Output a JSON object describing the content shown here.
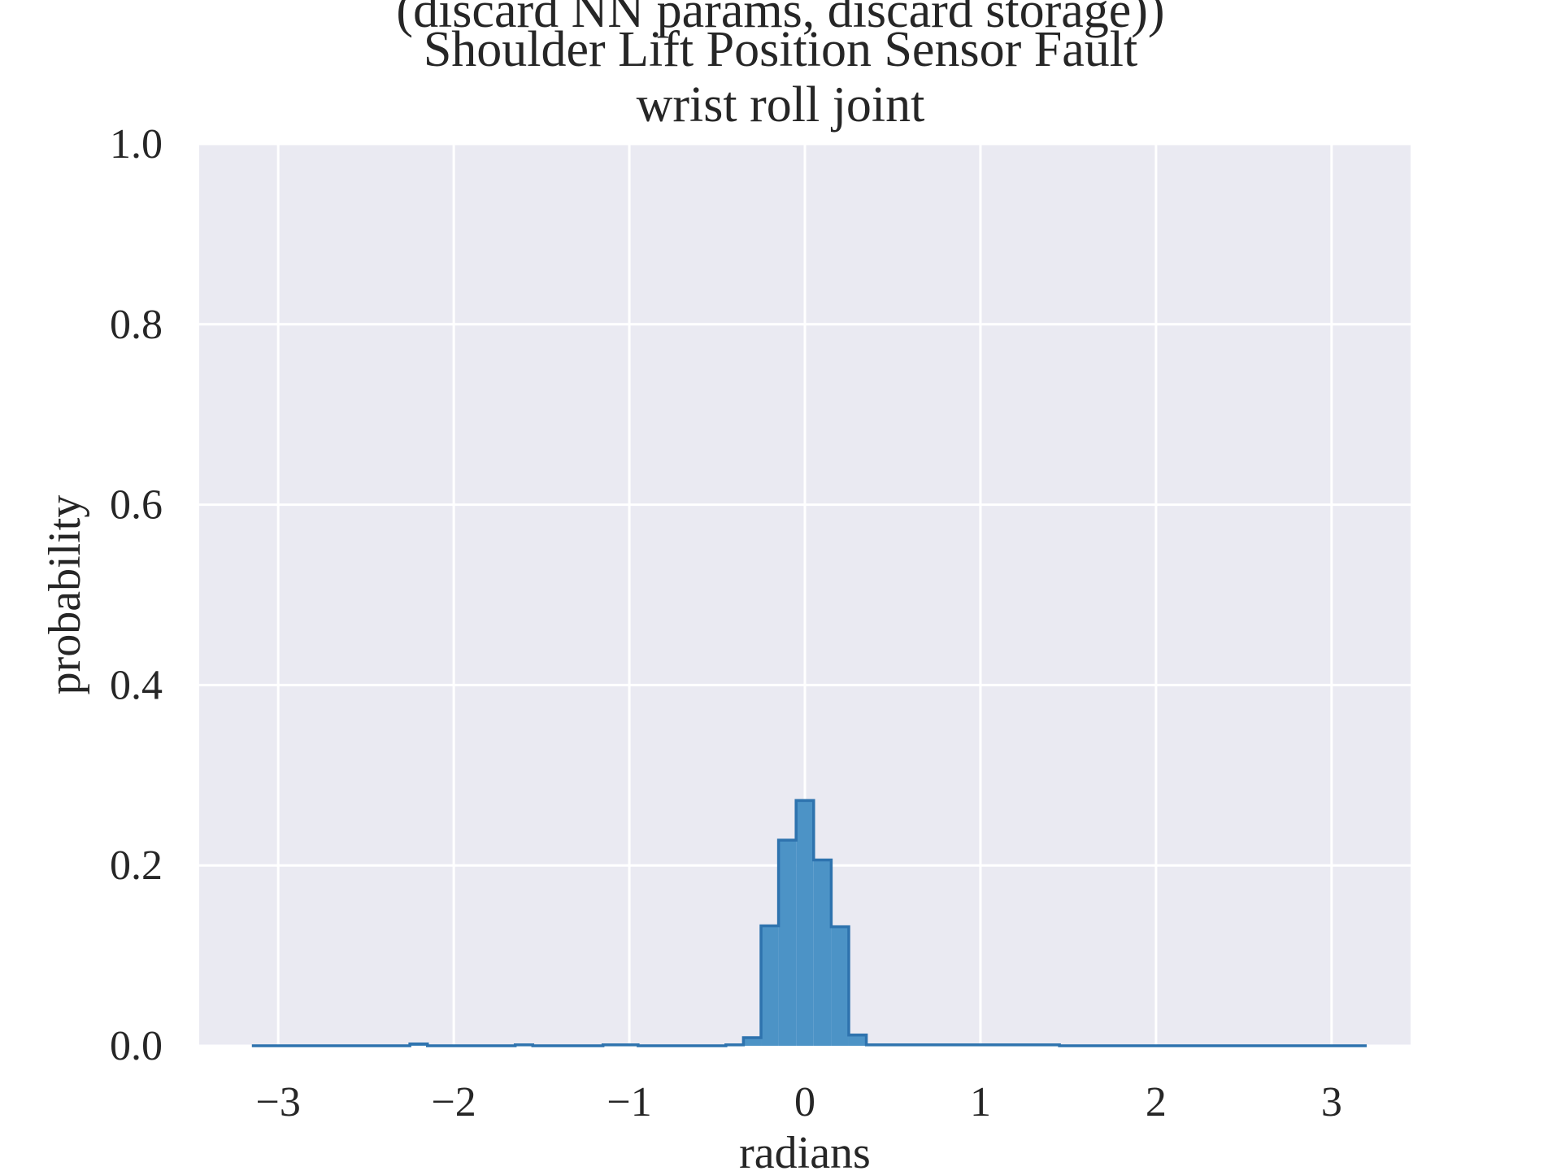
{
  "chart_data": {
    "type": "histogram",
    "title_lines": [
      "(discard NN params, discard storage))",
      "Shoulder Lift Position Sensor Fault",
      "wrist roll joint"
    ],
    "xlabel": "radians",
    "ylabel": "probability",
    "xlim": [
      -3.45,
      3.45
    ],
    "ylim": [
      0.0,
      1.0
    ],
    "xticks": [
      -3,
      -2,
      -1,
      0,
      1,
      2,
      3
    ],
    "xtick_labels": [
      "−3",
      "−2",
      "−1",
      "0",
      "1",
      "2",
      "3"
    ],
    "yticks": [
      0.0,
      0.2,
      0.4,
      0.6,
      0.8,
      1.0
    ],
    "ytick_labels": [
      "0.0",
      "0.2",
      "0.4",
      "0.6",
      "0.8",
      "1.0"
    ],
    "grid": true,
    "bin_edges": [
      -3.15,
      -2.25,
      -2.15,
      -1.65,
      -1.55,
      -1.15,
      -0.95,
      -0.45,
      -0.35,
      -0.25,
      -0.15,
      -0.05,
      0.05,
      0.15,
      0.25,
      0.35,
      1.45,
      3.2
    ],
    "values": [
      0.0,
      0.002,
      0.0,
      0.001,
      0.0,
      0.001,
      0.0,
      0.001,
      0.009,
      0.133,
      0.228,
      0.272,
      0.206,
      0.132,
      0.012,
      0.001,
      0.0
    ],
    "bar_fill": "#4c93c6",
    "bar_edge": "#2e73ae",
    "background": "#eaeaf2",
    "grid_color": "#ffffff"
  }
}
